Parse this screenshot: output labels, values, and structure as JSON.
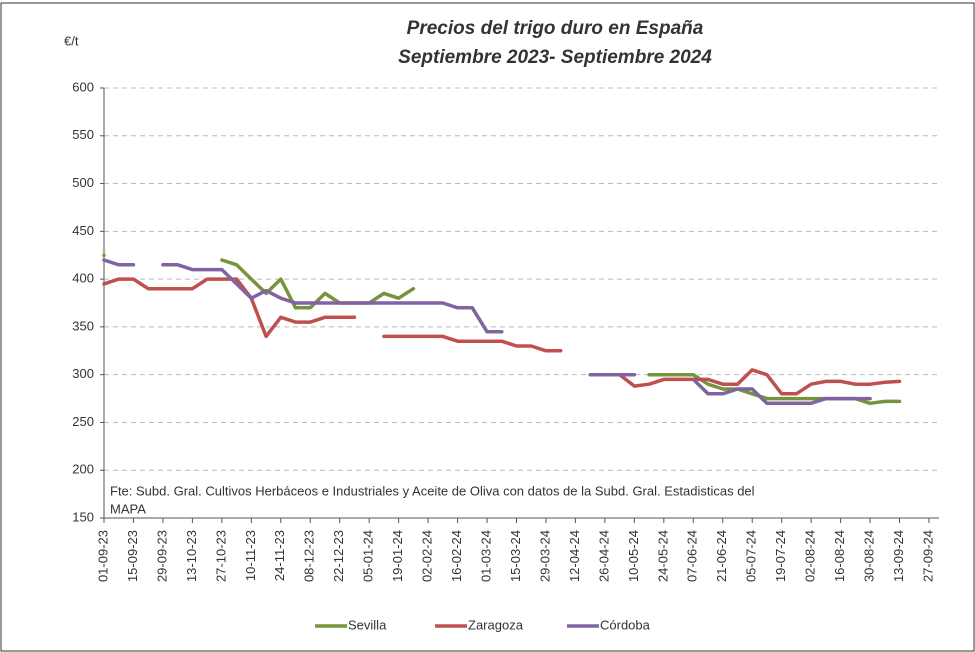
{
  "chart_data": {
    "type": "line",
    "title": [
      "Precios del trigo duro en España",
      "Septiembre 2023- Septiembre 2024"
    ],
    "y_label": "€/t",
    "source": [
      "Fte: Subd. Gral. Cultivos Herbáceos e Industriales y Aceite de Oliva con datos de la Subd. Gral. Estadisticas del",
      "MAPA"
    ],
    "categories": [
      "01-09-23",
      null,
      "15-09-23",
      null,
      "29-09-23",
      null,
      "13-10-23",
      null,
      "27-10-23",
      null,
      "10-11-23",
      null,
      "24-11-23",
      null,
      "08-12-23",
      null,
      "22-12-23",
      null,
      "05-01-24",
      null,
      "19-01-24",
      null,
      "02-02-24",
      null,
      "16-02-24",
      null,
      "01-03-24",
      null,
      "15-03-24",
      null,
      "29-03-24",
      null,
      "12-04-24",
      null,
      "26-04-24",
      null,
      "10-05-24",
      null,
      "24-05-24",
      null,
      "07-06-24",
      null,
      "21-06-24",
      null,
      "05-07-24",
      null,
      "19-07-24",
      null,
      "02-08-24",
      null,
      "16-08-24",
      null,
      "30-08-24",
      null,
      "13-09-24",
      null,
      "27-09-24"
    ],
    "series": [
      {
        "name": "Sevilla",
        "color": "#77933c",
        "values": [
          425,
          null,
          null,
          null,
          null,
          null,
          null,
          null,
          420,
          415,
          400,
          385,
          400,
          370,
          370,
          385,
          375,
          375,
          375,
          385,
          380,
          390,
          null,
          null,
          null,
          null,
          null,
          null,
          null,
          null,
          null,
          null,
          null,
          null,
          null,
          null,
          null,
          300,
          300,
          300,
          300,
          290,
          285,
          285,
          280,
          275,
          275,
          275,
          275,
          275,
          275,
          275,
          270,
          272,
          272,
          null,
          null
        ]
      },
      {
        "name": "Zaragoza",
        "color": "#c0504d",
        "values": [
          395,
          400,
          400,
          390,
          390,
          390,
          390,
          400,
          400,
          400,
          380,
          340,
          360,
          355,
          355,
          360,
          360,
          360,
          null,
          340,
          340,
          340,
          340,
          340,
          335,
          335,
          335,
          335,
          330,
          330,
          325,
          325,
          null,
          null,
          null,
          300,
          288,
          290,
          295,
          295,
          295,
          295,
          290,
          290,
          305,
          300,
          280,
          280,
          290,
          293,
          293,
          290,
          290,
          292,
          293,
          null,
          null
        ]
      },
      {
        "name": "Córdoba",
        "color": "#8064a2",
        "values": [
          420,
          415,
          415,
          null,
          415,
          415,
          410,
          410,
          410,
          395,
          380,
          388,
          380,
          375,
          375,
          375,
          375,
          375,
          375,
          375,
          375,
          375,
          375,
          375,
          370,
          370,
          345,
          345,
          null,
          null,
          null,
          null,
          null,
          300,
          300,
          300,
          300,
          null,
          null,
          null,
          295,
          280,
          280,
          285,
          285,
          270,
          270,
          270,
          270,
          275,
          275,
          275,
          275,
          null,
          null,
          null,
          null
        ]
      }
    ],
    "ylim": [
      150,
      600
    ],
    "yticks": [
      150,
      200,
      250,
      300,
      350,
      400,
      450,
      500,
      550,
      600
    ],
    "grid": true,
    "legend": "bottom"
  }
}
